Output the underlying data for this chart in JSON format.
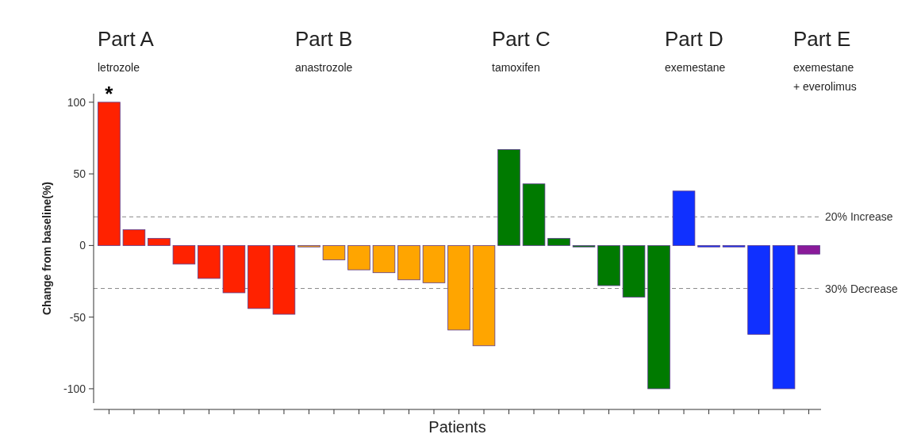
{
  "chart_data": {
    "type": "bar",
    "xlabel": "Patients",
    "ylabel": "Change from baseline(%)",
    "categories": [
      null,
      null,
      null,
      null,
      null,
      null,
      null,
      null,
      null,
      null,
      null,
      null,
      null,
      null,
      null,
      null,
      null,
      null,
      null,
      null,
      null,
      null,
      null,
      null,
      null,
      null,
      null,
      null,
      null
    ],
    "values": [
      100,
      11,
      5,
      -13,
      -23,
      -33,
      -44,
      -48,
      -1,
      -10,
      -17,
      -19,
      -24,
      -26,
      -59,
      -70,
      67,
      43,
      5,
      -1,
      -28,
      -36,
      -100,
      38,
      -1,
      -1,
      -62,
      -100,
      -6
    ],
    "colors": [
      "#ff2200",
      "#ff2200",
      "#ff2200",
      "#ff2200",
      "#ff2200",
      "#ff2200",
      "#ff2200",
      "#ff2200",
      "#ffa500",
      "#ffa500",
      "#ffa500",
      "#ffa500",
      "#ffa500",
      "#ffa500",
      "#ffa500",
      "#ffa500",
      "#007a00",
      "#007a00",
      "#007a00",
      "#007a00",
      "#007a00",
      "#007a00",
      "#007a00",
      "#1030ff",
      "#1030ff",
      "#1030ff",
      "#1030ff",
      "#1030ff",
      "#8a1a9a"
    ],
    "ylim": [
      -110,
      106
    ],
    "yticks": [
      -100,
      -50,
      0,
      50,
      100
    ],
    "grid": false,
    "ref_lines": [
      {
        "axis": "y",
        "value": 20,
        "label": "20% Increase",
        "color": "#888888",
        "line_style": "dashed"
      },
      {
        "axis": "y",
        "value": -30,
        "label": "30% Decrease",
        "color": "#888888",
        "line_style": "dashed"
      }
    ],
    "annotations": [
      "Part A",
      "letrozole",
      "Part B",
      "anastrozole",
      "Part C",
      "tamoxifen",
      "Part D",
      "exemestane",
      "Part E",
      "exemestane",
      "+ everolimus",
      {
        "text": "*",
        "y": 100
      }
    ]
  }
}
